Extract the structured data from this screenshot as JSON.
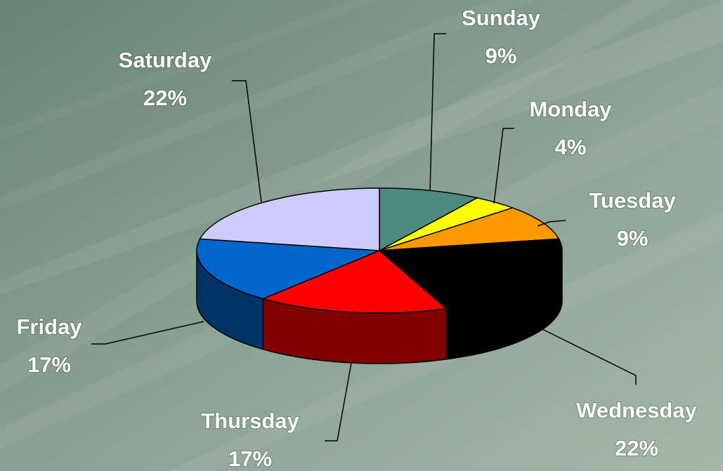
{
  "chart_data": {
    "type": "pie",
    "categories": [
      "Sunday",
      "Monday",
      "Tuesday",
      "Wednesday",
      "Thursday",
      "Friday",
      "Saturday"
    ],
    "values": [
      9,
      4,
      9,
      22,
      17,
      17,
      22
    ],
    "value_labels": [
      "9%",
      "4%",
      "9%",
      "22%",
      "17%",
      "17%",
      "22%"
    ],
    "colors": [
      "#4f8a80",
      "#ffff00",
      "#ff9900",
      "#000000",
      "#ff0000",
      "#0066cc",
      "#ccccff"
    ],
    "three_d": true
  }
}
